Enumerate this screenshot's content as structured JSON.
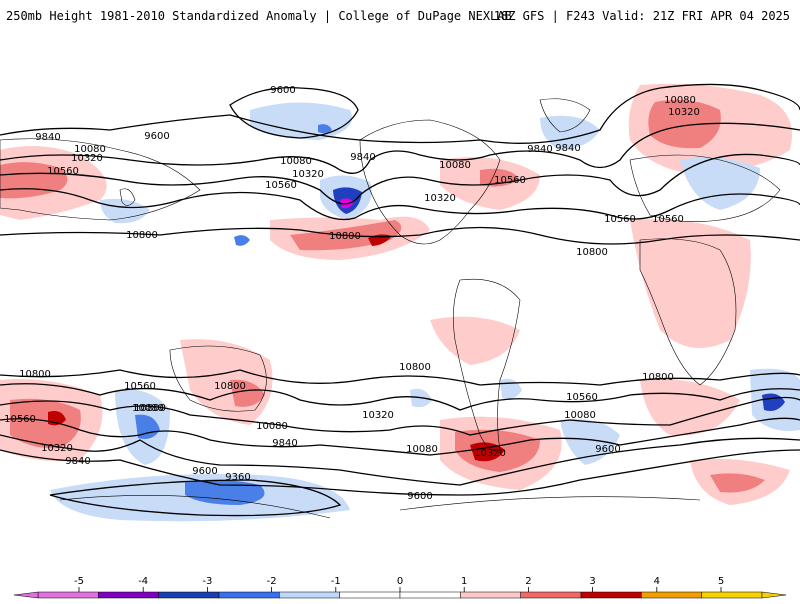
{
  "header": {
    "title": "250mb Height 1981-2010 Standardized Anomaly | College of DuPage NEXLAB",
    "run_info": "18Z GFS | F243 Valid: 21Z FRI APR 04 2025"
  },
  "colors": {
    "background": "#ffffff",
    "contour": "#000000",
    "coast": "#000000",
    "pos_light": "#ffcccc",
    "pos_mid": "#f08080",
    "pos_strong": "#e04848",
    "pos_max": "#c00000",
    "neg_light": "#c8dcf8",
    "neg_mid": "#4a7fe8",
    "neg_strong": "#2040c0",
    "neg_max": "#e000e0"
  },
  "contour_labels": [
    "9600",
    "9600",
    "9840",
    "9840",
    "10080",
    "10320",
    "10560",
    "10080",
    "10320",
    "10560",
    "9840",
    "10080",
    "10320",
    "10560",
    "10800",
    "10080",
    "10320",
    "10560",
    "9840",
    "10560",
    "10800",
    "10800",
    "10800",
    "10560",
    "10800",
    "10320",
    "10080",
    "9840",
    "10080",
    "10320",
    "9600",
    "9360",
    "10560",
    "10320",
    "10080",
    "9600",
    "10560",
    "10800",
    "10080",
    "9840",
    "9600",
    "10800",
    "10800"
  ],
  "colorbar": {
    "ticks": [
      "-5",
      "-4",
      "-3",
      "-2",
      "-1",
      "0",
      "1",
      "2",
      "3",
      "4",
      "5"
    ],
    "colors": [
      "#e070e0",
      "#8000c0",
      "#1840b0",
      "#3870f0",
      "#c0d8f8",
      "#ffffff",
      "#ffffff",
      "#ffc8c8",
      "#f06868",
      "#c00000",
      "#f0a000",
      "#f8d000"
    ]
  }
}
